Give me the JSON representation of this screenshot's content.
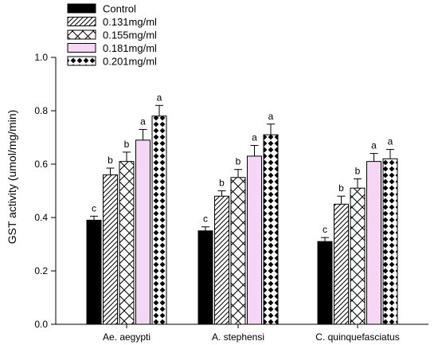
{
  "chart_data": {
    "type": "bar",
    "ylabel": "GST activity (umol/mg/min)",
    "ylim": [
      0,
      1.0
    ],
    "yticks": [
      "0.0",
      "0.2",
      "0.4",
      "0.6",
      "0.8",
      "1.0"
    ],
    "legend_position": "top-left",
    "grid": false,
    "categories": [
      "Ae. aegypti",
      "A. stephensi",
      "C. quinquefasciatus"
    ],
    "series": [
      {
        "name": "Control",
        "pattern": "solid-black",
        "values": [
          0.39,
          0.35,
          0.31
        ],
        "errors": [
          0.015,
          0.015,
          0.015
        ],
        "labels": [
          "c",
          "c",
          "c"
        ]
      },
      {
        "name": "0.131mg/ml",
        "pattern": "diagonal-hatch",
        "values": [
          0.56,
          0.48,
          0.45
        ],
        "errors": [
          0.025,
          0.02,
          0.03
        ],
        "labels": [
          "b",
          "b",
          "b"
        ]
      },
      {
        "name": "0.155mg/ml",
        "pattern": "crosshatch-x",
        "values": [
          0.61,
          0.55,
          0.51
        ],
        "errors": [
          0.035,
          0.03,
          0.035
        ],
        "labels": [
          "b",
          "b",
          "b"
        ]
      },
      {
        "name": "0.181mg/ml",
        "pattern": "pink-fill",
        "fill": "#f5d7f5",
        "values": [
          0.69,
          0.63,
          0.61
        ],
        "errors": [
          0.04,
          0.04,
          0.03
        ],
        "labels": [
          "a",
          "a",
          "a"
        ]
      },
      {
        "name": "0.201mg/ml",
        "pattern": "black-diamonds",
        "values": [
          0.78,
          0.71,
          0.62
        ],
        "errors": [
          0.04,
          0.04,
          0.035
        ],
        "labels": [
          "a",
          "a",
          "a"
        ]
      }
    ]
  }
}
